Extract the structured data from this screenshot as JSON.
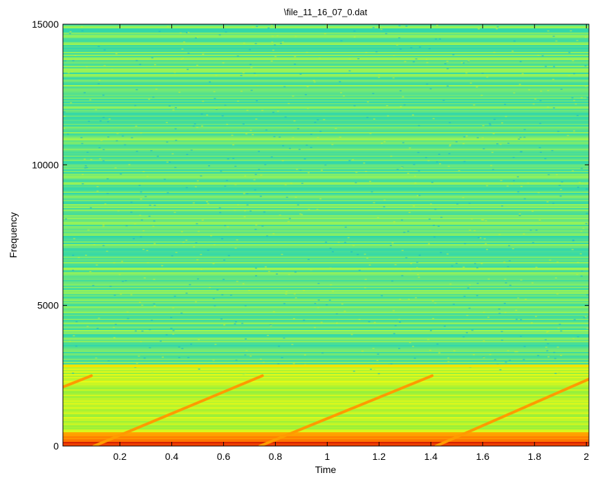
{
  "chart_data": {
    "type": "spectrogram",
    "title": "\\file_11_16_07_0.dat",
    "x_label": "Time",
    "y_label": "Frequency",
    "xlim": [
      -0.02,
      2.01
    ],
    "ylim": [
      0,
      15000
    ],
    "xticks": [
      0.2,
      0.4,
      0.6,
      0.8,
      1,
      1.2,
      1.4,
      1.6,
      1.8,
      2
    ],
    "yticks": [
      0,
      5000,
      10000,
      15000
    ],
    "series": [
      {
        "color": "#ff9a00",
        "x": [
          -0.02,
          0.09
        ],
        "values": [
          2100,
          2500
        ]
      },
      {
        "color": "#ff9a00",
        "x": [
          0.1,
          0.75
        ],
        "values": [
          0,
          2500
        ]
      },
      {
        "color": "#ff9a00",
        "x": [
          0.74,
          1.405
        ],
        "values": [
          0,
          2500
        ]
      },
      {
        "color": "#ff9a00",
        "x": [
          1.42,
          2.01
        ],
        "values": [
          0,
          2380
        ]
      },
      {
        "color": "#f4e400",
        "x": [
          -0.02,
          2.01
        ],
        "values": [
          2850,
          2850
        ]
      }
    ]
  }
}
